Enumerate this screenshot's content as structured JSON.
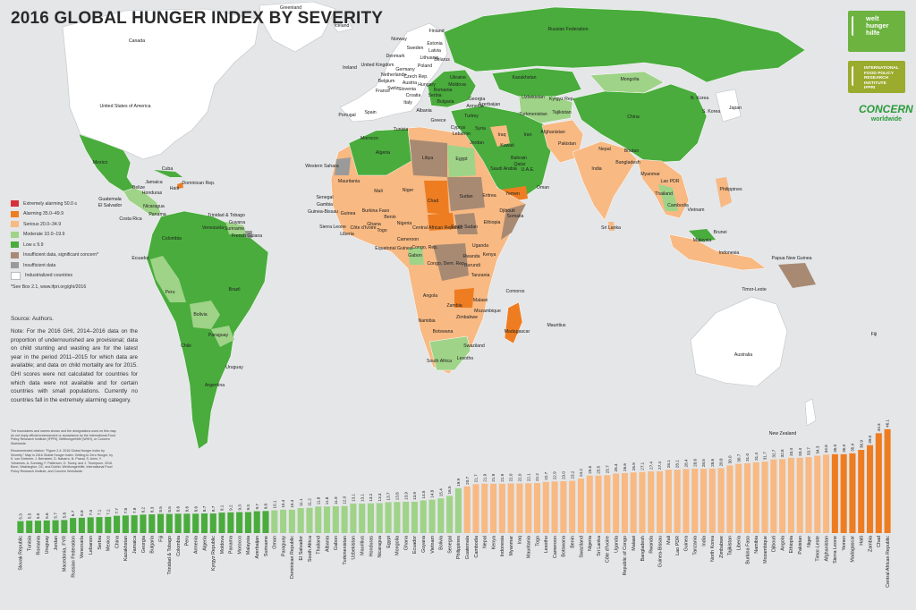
{
  "title": "2016 GLOBAL HUNGER INDEX BY SEVERITY",
  "legend": [
    {
      "label": "Extremely alarming 50.0 ≤",
      "color": "#d6313a"
    },
    {
      "label": "Alarming 35.0–49.9",
      "color": "#ee7d21"
    },
    {
      "label": "Serious 20.0–34.9",
      "color": "#f8b983"
    },
    {
      "label": "Moderate 10.0–19.9",
      "color": "#9fd388"
    },
    {
      "label": "Low ≤ 9.9",
      "color": "#49ac3c"
    },
    {
      "label": "Insufficient data, significant concern*",
      "color": "#a88a73"
    },
    {
      "label": "Insufficient data",
      "color": "#9a9a9a"
    },
    {
      "label": "Industrialized countries",
      "color": "#ffffff"
    }
  ],
  "legend_note": "*See Box 2.1, www.ifpri.org/ghi/2016",
  "source": "Source: Authors.",
  "note": "Note: For the 2016 GHI, 2014–2016 data on the proportion of undernourished are provisional; data on child stunting and wasting are for the latest year in the period 2011–2015 for which data are available; and data on child mortality are for 2015. GHI scores were not calculated for countries for which data were not available and for certain countries with small populations. Currently no countries fall in the extremely alarming category.",
  "disclaimer": "The boundaries and names shown and the designations used on this map do not imply official endorsement or acceptance by the International Food Policy Research Institute (IFPRI), Welthungerhilfe (WHH), or Concern Worldwide.",
  "citation": "Recommended citation: \"Figure 2.4: 2016 Global Hunger Index by Severity.\" Map in 2016 Global Hunger Index: Getting to Zero Hunger, by K. von Grebmer, J. Bernstein, D. Nabarro, N. Prasai, S. Amin, Y. Yohannes, A. Sonntag, F. Patterson, O. Towey, and J. Thompson. 2016. Bonn, Washington, DC, and Dublin: Welthungerhilfe, International Food Policy Research Institute, and Concern Worldwide.",
  "logos": {
    "whh": "welt hunger hilfe",
    "ifpri": "INTERNATIONAL FOOD POLICY RESEARCH INSTITUTE",
    "ifpri_abbr": "IFPRI",
    "concern": "CONCERN",
    "concern_sub": "worldwide"
  },
  "map_labels": [
    {
      "text": "Canada",
      "x": 153,
      "y": 47
    },
    {
      "text": "United States of America",
      "x": 140,
      "y": 120
    },
    {
      "text": "Mexico",
      "x": 112,
      "y": 183
    },
    {
      "text": "Cuba",
      "x": 187,
      "y": 190
    },
    {
      "text": "Dominican Rep.",
      "x": 222,
      "y": 206
    },
    {
      "text": "Haiti",
      "x": 195,
      "y": 212
    },
    {
      "text": "Jamaica",
      "x": 172,
      "y": 205
    },
    {
      "text": "Belize",
      "x": 155,
      "y": 211
    },
    {
      "text": "Honduras",
      "x": 170,
      "y": 217
    },
    {
      "text": "Guatemala",
      "x": 123,
      "y": 224
    },
    {
      "text": "El Salvador",
      "x": 123,
      "y": 231
    },
    {
      "text": "Nicaragua",
      "x": 172,
      "y": 232
    },
    {
      "text": "Costa Rica",
      "x": 146,
      "y": 246
    },
    {
      "text": "Panama",
      "x": 176,
      "y": 241
    },
    {
      "text": "Trinidad & Tobago",
      "x": 253,
      "y": 242
    },
    {
      "text": "Venezuela",
      "x": 238,
      "y": 256
    },
    {
      "text": "Guyana",
      "x": 265,
      "y": 250
    },
    {
      "text": "Suriname",
      "x": 262,
      "y": 257
    },
    {
      "text": "French Guiana",
      "x": 276,
      "y": 265
    },
    {
      "text": "Colombia",
      "x": 192,
      "y": 268
    },
    {
      "text": "Ecuador",
      "x": 157,
      "y": 290
    },
    {
      "text": "Peru",
      "x": 190,
      "y": 328
    },
    {
      "text": "Brazil",
      "x": 262,
      "y": 325
    },
    {
      "text": "Bolivia",
      "x": 224,
      "y": 353
    },
    {
      "text": "Paraguay",
      "x": 244,
      "y": 376
    },
    {
      "text": "Chile",
      "x": 208,
      "y": 388
    },
    {
      "text": "Uruguay",
      "x": 262,
      "y": 412
    },
    {
      "text": "Argentina",
      "x": 240,
      "y": 432
    },
    {
      "text": "Greenland",
      "x": 325,
      "y": 10
    },
    {
      "text": "Iceland",
      "x": 382,
      "y": 30
    },
    {
      "text": "Norway",
      "x": 446,
      "y": 45
    },
    {
      "text": "Sweden",
      "x": 464,
      "y": 55
    },
    {
      "text": "Finland",
      "x": 488,
      "y": 36
    },
    {
      "text": "Estonia",
      "x": 486,
      "y": 50
    },
    {
      "text": "Latvia",
      "x": 486,
      "y": 58
    },
    {
      "text": "Lithuania",
      "x": 480,
      "y": 66
    },
    {
      "text": "Denmark",
      "x": 442,
      "y": 64
    },
    {
      "text": "Ireland",
      "x": 391,
      "y": 77
    },
    {
      "text": "United Kingdom",
      "x": 422,
      "y": 74
    },
    {
      "text": "Netherlands",
      "x": 440,
      "y": 85
    },
    {
      "text": "Germany",
      "x": 453,
      "y": 79
    },
    {
      "text": "Belgium",
      "x": 432,
      "y": 92
    },
    {
      "text": "Poland",
      "x": 475,
      "y": 75
    },
    {
      "text": "Belarus",
      "x": 494,
      "y": 68
    },
    {
      "text": "Czech Rep.",
      "x": 465,
      "y": 87
    },
    {
      "text": "Austria",
      "x": 458,
      "y": 94
    },
    {
      "text": "Switz.",
      "x": 440,
      "y": 100
    },
    {
      "text": "France",
      "x": 428,
      "y": 103
    },
    {
      "text": "Slovenia",
      "x": 455,
      "y": 101
    },
    {
      "text": "Croatia",
      "x": 462,
      "y": 108
    },
    {
      "text": "Italy",
      "x": 456,
      "y": 116
    },
    {
      "text": "Hungary",
      "x": 477,
      "y": 96
    },
    {
      "text": "Ukraine",
      "x": 512,
      "y": 88
    },
    {
      "text": "Moldova",
      "x": 511,
      "y": 96
    },
    {
      "text": "Romania",
      "x": 495,
      "y": 102
    },
    {
      "text": "Serbia",
      "x": 486,
      "y": 108
    },
    {
      "text": "Bulgaria",
      "x": 498,
      "y": 115
    },
    {
      "text": "Albania",
      "x": 474,
      "y": 125
    },
    {
      "text": "Greece",
      "x": 490,
      "y": 136
    },
    {
      "text": "Portugal",
      "x": 388,
      "y": 130
    },
    {
      "text": "Spain",
      "x": 414,
      "y": 127
    },
    {
      "text": "Russian Federation",
      "x": 635,
      "y": 34
    },
    {
      "text": "Kazakhstan",
      "x": 586,
      "y": 88
    },
    {
      "text": "Mongolia",
      "x": 704,
      "y": 90
    },
    {
      "text": "Georgia",
      "x": 533,
      "y": 112
    },
    {
      "text": "Armenia",
      "x": 531,
      "y": 120
    },
    {
      "text": "Azerbaijan",
      "x": 547,
      "y": 118
    },
    {
      "text": "Uzbekistan",
      "x": 596,
      "y": 110
    },
    {
      "text": "Kyrgyz Rep.",
      "x": 628,
      "y": 112
    },
    {
      "text": "Turkmenistan",
      "x": 596,
      "y": 129
    },
    {
      "text": "Tajikistan",
      "x": 628,
      "y": 127
    },
    {
      "text": "Turkey",
      "x": 527,
      "y": 131
    },
    {
      "text": "Cyprus",
      "x": 512,
      "y": 144
    },
    {
      "text": "Lebanon",
      "x": 516,
      "y": 151
    },
    {
      "text": "Syria",
      "x": 537,
      "y": 145
    },
    {
      "text": "Jordan",
      "x": 533,
      "y": 161
    },
    {
      "text": "Iraq",
      "x": 561,
      "y": 152
    },
    {
      "text": "Iran",
      "x": 590,
      "y": 152
    },
    {
      "text": "Kuwait",
      "x": 567,
      "y": 164
    },
    {
      "text": "Saudi Arabia",
      "x": 563,
      "y": 190
    },
    {
      "text": "Bahrain",
      "x": 580,
      "y": 178
    },
    {
      "text": "Qatar",
      "x": 581,
      "y": 185
    },
    {
      "text": "U.A.E.",
      "x": 590,
      "y": 191
    },
    {
      "text": "Oman",
      "x": 607,
      "y": 211
    },
    {
      "text": "Yemen",
      "x": 573,
      "y": 218
    },
    {
      "text": "Afghanistan",
      "x": 618,
      "y": 149
    },
    {
      "text": "Pakistan",
      "x": 634,
      "y": 162
    },
    {
      "text": "Nepal",
      "x": 676,
      "y": 168
    },
    {
      "text": "Bhutan",
      "x": 706,
      "y": 170
    },
    {
      "text": "India",
      "x": 667,
      "y": 190
    },
    {
      "text": "Bangladesh",
      "x": 702,
      "y": 183
    },
    {
      "text": "Sri Lanka",
      "x": 683,
      "y": 256
    },
    {
      "text": "China",
      "x": 708,
      "y": 132
    },
    {
      "text": "N. Korea",
      "x": 782,
      "y": 111
    },
    {
      "text": "S. Korea",
      "x": 795,
      "y": 126
    },
    {
      "text": "Japan",
      "x": 822,
      "y": 122
    },
    {
      "text": "Myanmar",
      "x": 727,
      "y": 196
    },
    {
      "text": "Lao PDR",
      "x": 749,
      "y": 204
    },
    {
      "text": "Thailand",
      "x": 742,
      "y": 218
    },
    {
      "text": "Cambodia",
      "x": 758,
      "y": 231
    },
    {
      "text": "Vietnam",
      "x": 778,
      "y": 236
    },
    {
      "text": "Philippines",
      "x": 817,
      "y": 213
    },
    {
      "text": "Brunei",
      "x": 805,
      "y": 261
    },
    {
      "text": "Malaysia",
      "x": 785,
      "y": 270
    },
    {
      "text": "Indonesia",
      "x": 815,
      "y": 284
    },
    {
      "text": "Papua New Guinea",
      "x": 885,
      "y": 290
    },
    {
      "text": "Timor-Leste",
      "x": 843,
      "y": 325
    },
    {
      "text": "Australia",
      "x": 831,
      "y": 398
    },
    {
      "text": "New Zealand",
      "x": 875,
      "y": 486
    },
    {
      "text": "Fiji",
      "x": 977,
      "y": 375
    },
    {
      "text": "Morocco",
      "x": 413,
      "y": 156
    },
    {
      "text": "Algeria",
      "x": 428,
      "y": 172
    },
    {
      "text": "Tunisia",
      "x": 448,
      "y": 146
    },
    {
      "text": "Libya",
      "x": 478,
      "y": 178
    },
    {
      "text": "Egypt",
      "x": 516,
      "y": 179
    },
    {
      "text": "Western Sahara",
      "x": 360,
      "y": 187
    },
    {
      "text": "Mauritania",
      "x": 390,
      "y": 204
    },
    {
      "text": "Mali",
      "x": 423,
      "y": 215
    },
    {
      "text": "Niger",
      "x": 456,
      "y": 214
    },
    {
      "text": "Chad",
      "x": 484,
      "y": 226
    },
    {
      "text": "Sudan",
      "x": 521,
      "y": 221
    },
    {
      "text": "Eritrea",
      "x": 547,
      "y": 220
    },
    {
      "text": "Djibouti",
      "x": 567,
      "y": 237
    },
    {
      "text": "Senegal",
      "x": 363,
      "y": 222
    },
    {
      "text": "Gambia",
      "x": 363,
      "y": 230
    },
    {
      "text": "Guinea-Bissau",
      "x": 361,
      "y": 238
    },
    {
      "text": "Guinea",
      "x": 389,
      "y": 240
    },
    {
      "text": "Burkina Faso",
      "x": 420,
      "y": 237
    },
    {
      "text": "Benin",
      "x": 436,
      "y": 244
    },
    {
      "text": "Ghana",
      "x": 418,
      "y": 252
    },
    {
      "text": "Togo",
      "x": 427,
      "y": 259
    },
    {
      "text": "Nigeria",
      "x": 452,
      "y": 251
    },
    {
      "text": "Côte d'Ivoire",
      "x": 406,
      "y": 256
    },
    {
      "text": "Sierra Leone",
      "x": 372,
      "y": 255
    },
    {
      "text": "Liberia",
      "x": 388,
      "y": 263
    },
    {
      "text": "Central African Republic",
      "x": 489,
      "y": 256
    },
    {
      "text": "South Sudan",
      "x": 519,
      "y": 255
    },
    {
      "text": "Ethiopia",
      "x": 550,
      "y": 250
    },
    {
      "text": "Somalia",
      "x": 576,
      "y": 243
    },
    {
      "text": "Cameroon",
      "x": 456,
      "y": 269
    },
    {
      "text": "Equatorial Guinea",
      "x": 440,
      "y": 279
    },
    {
      "text": "Gabon",
      "x": 464,
      "y": 287
    },
    {
      "text": "Congo, Rep.",
      "x": 475,
      "y": 278
    },
    {
      "text": "Uganda",
      "x": 537,
      "y": 276
    },
    {
      "text": "Kenya",
      "x": 547,
      "y": 286
    },
    {
      "text": "Congo, Dem. Rep.",
      "x": 499,
      "y": 296
    },
    {
      "text": "Rwanda",
      "x": 527,
      "y": 288
    },
    {
      "text": "Burundi",
      "x": 528,
      "y": 298
    },
    {
      "text": "Tanzania",
      "x": 537,
      "y": 309
    },
    {
      "text": "Comoros",
      "x": 576,
      "y": 327
    },
    {
      "text": "Angola",
      "x": 481,
      "y": 332
    },
    {
      "text": "Malawi",
      "x": 537,
      "y": 337
    },
    {
      "text": "Zambia",
      "x": 508,
      "y": 343
    },
    {
      "text": "Mozambique",
      "x": 545,
      "y": 349
    },
    {
      "text": "Zimbabwe",
      "x": 522,
      "y": 356
    },
    {
      "text": "Madagascar",
      "x": 578,
      "y": 372
    },
    {
      "text": "Mauritius",
      "x": 622,
      "y": 365
    },
    {
      "text": "Namibia",
      "x": 477,
      "y": 360
    },
    {
      "text": "Botswana",
      "x": 495,
      "y": 372
    },
    {
      "text": "Swaziland",
      "x": 530,
      "y": 388
    },
    {
      "text": "South Africa",
      "x": 491,
      "y": 405
    },
    {
      "text": "Lesotho",
      "x": 520,
      "y": 402
    }
  ],
  "chart_data": {
    "type": "bar",
    "title": "",
    "xlabel": "",
    "ylabel": "",
    "ylim": [
      0,
      50
    ],
    "bands": [
      {
        "name": "Low ≤ 9.9",
        "color": "#49ac3c",
        "min": 0,
        "max": 9.9
      },
      {
        "name": "Moderate 10.0–19.9",
        "color": "#9fd388",
        "min": 10,
        "max": 19.9
      },
      {
        "name": "Serious 20.0–34.9",
        "color": "#f8b983",
        "min": 20,
        "max": 34.9
      },
      {
        "name": "Alarming 35.0–49.9",
        "color": "#ee7d21",
        "min": 35,
        "max": 49.9
      }
    ],
    "categories": [
      "Slovak Republic",
      "Tunisia",
      "Romania",
      "Uruguay",
      "Jordan",
      "Macedonia, FYR",
      "Russian Federation",
      "Venezuela",
      "Lebanon",
      "Serbia",
      "Mexico",
      "China",
      "Kazakhstan",
      "Jamaica",
      "Georgia",
      "Bulgaria",
      "Fiji",
      "Trinidad & Tobago",
      "Colombia",
      "Peru",
      "Armenia",
      "Algeria",
      "Kyrgyz Republic",
      "Moldova",
      "Panama",
      "Morocco",
      "Malaysia",
      "Azerbaijan",
      "Suriname",
      "Oman",
      "Paraguay",
      "Dominican Republic",
      "El Salvador",
      "South Africa",
      "Thailand",
      "Albania",
      "Gabon",
      "Turkmenistan",
      "Uzbekistan",
      "Mauritius",
      "Honduras",
      "Nicaragua",
      "Egypt",
      "Mongolia",
      "Ghana",
      "Ecuador",
      "Guyana",
      "Vietnam",
      "Bolivia",
      "Senegal",
      "Philippines",
      "Guatemala",
      "Cambodia",
      "Nepal",
      "Kenya",
      "Indonesia",
      "Myanmar",
      "Iraq",
      "Mauritania",
      "Togo",
      "Lesotho",
      "Cameroon",
      "Botswana",
      "Benin",
      "Swaziland",
      "Nigeria",
      "Sri Lanka",
      "Côte d'Ivoire",
      "Uganda",
      "Republic of Congo",
      "Malawi",
      "Bangladesh",
      "Rwanda",
      "Guinea-Bissau",
      "Mali",
      "Lao PDR",
      "Guinea",
      "Tanzania",
      "India",
      "North Korea",
      "Zimbabwe",
      "Tajikistan",
      "Liberia",
      "Burkina Faso",
      "Namibia",
      "Mozambique",
      "Djibouti",
      "Angola",
      "Ethiopia",
      "Pakistan",
      "Niger",
      "Timor-Leste",
      "Afghanistan",
      "Sierra Leone",
      "Yemen",
      "Madagascar",
      "Haiti",
      "Zambia",
      "Chad",
      "Central African Republic"
    ],
    "values": [
      5.3,
      5.5,
      5.5,
      5.6,
      5.7,
      5.8,
      6.7,
      6.8,
      7.0,
      7.1,
      7.2,
      7.7,
      7.8,
      7.9,
      8.2,
      8.3,
      8.5,
      8.5,
      8.6,
      8.6,
      8.6,
      8.7,
      8.7,
      9.1,
      9.2,
      9.3,
      9.3,
      9.7,
      9.8,
      10.1,
      10.4,
      10.4,
      11.1,
      11.2,
      11.8,
      11.8,
      11.9,
      12.0,
      13.1,
      13.1,
      13.2,
      13.3,
      13.7,
      13.8,
      13.9,
      13.9,
      14.5,
      14.8,
      15.4,
      16.5,
      19.9,
      20.7,
      21.7,
      21.9,
      21.9,
      21.9,
      22.0,
      22.0,
      22.1,
      22.2,
      22.7,
      22.9,
      23.0,
      23.2,
      24.2,
      25.5,
      25.5,
      25.7,
      26.4,
      26.6,
      26.9,
      27.1,
      27.4,
      27.4,
      28.1,
      28.1,
      28.4,
      28.6,
      28.5,
      28.6,
      28.8,
      30.0,
      30.7,
      31.0,
      31.4,
      31.7,
      32.7,
      32.8,
      33.4,
      33.4,
      33.7,
      34.3,
      34.8,
      35.0,
      35.0,
      35.4,
      36.9,
      39.0,
      44.3,
      46.1
    ]
  }
}
